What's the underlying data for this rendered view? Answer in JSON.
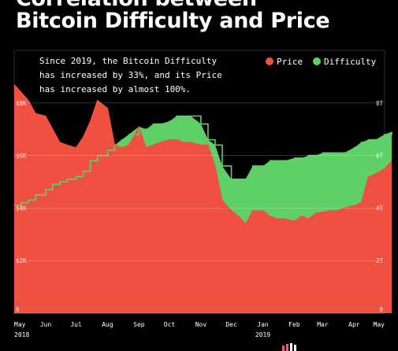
{
  "header": {
    "title_line1": "Correlation between",
    "title_line2": "Bitcoin Difficulty and Price"
  },
  "chart_data": {
    "type": "area",
    "annotation": [
      "Since 2019, the Bitcoin Difficulty",
      "has increased by 33%, and its Price",
      "has increased by almost 100%."
    ],
    "legend": [
      {
        "name": "Price",
        "color": "#f0503f"
      },
      {
        "name": "Difficulty",
        "color": "#5fcf68"
      }
    ],
    "legend_position": "top-right",
    "x_ticks": [
      "May",
      "Jun",
      "Jul",
      "Aug",
      "Sep",
      "Oct",
      "Nov",
      "Dec",
      "Jan",
      "Feb",
      "Mar",
      "Apr",
      "May"
    ],
    "x_subticks": [
      "2018",
      "2019"
    ],
    "y_left": {
      "ticks": [
        "0",
        "$2K",
        "$4K",
        "$6K",
        "$8K"
      ],
      "range": [
        0,
        10000
      ]
    },
    "y_right": {
      "ticks": [
        "0",
        "2T",
        "4T",
        "6T",
        "8T"
      ],
      "range": [
        0,
        10
      ]
    },
    "grid": true,
    "x": [
      "2018-05-01",
      "2018-05-08",
      "2018-05-15",
      "2018-05-22",
      "2018-06-01",
      "2018-06-08",
      "2018-06-15",
      "2018-06-22",
      "2018-07-01",
      "2018-07-08",
      "2018-07-15",
      "2018-07-22",
      "2018-08-01",
      "2018-08-08",
      "2018-08-15",
      "2018-08-22",
      "2018-09-01",
      "2018-09-08",
      "2018-09-15",
      "2018-09-22",
      "2018-10-01",
      "2018-10-08",
      "2018-10-15",
      "2018-10-22",
      "2018-11-01",
      "2018-11-08",
      "2018-11-15",
      "2018-11-22",
      "2018-12-01",
      "2018-12-08",
      "2018-12-15",
      "2018-12-22",
      "2019-01-01",
      "2019-01-08",
      "2019-01-15",
      "2019-01-22",
      "2019-02-01",
      "2019-02-08",
      "2019-02-15",
      "2019-02-22",
      "2019-03-01",
      "2019-03-08",
      "2019-03-15",
      "2019-03-22",
      "2019-04-01",
      "2019-04-08",
      "2019-04-15",
      "2019-04-22",
      "2019-05-01",
      "2019-05-08"
    ],
    "series": [
      {
        "name": "Price",
        "unit": "USD",
        "values": [
          8700,
          8400,
          8100,
          7600,
          7500,
          7000,
          6500,
          6400,
          6300,
          6700,
          7300,
          8100,
          7800,
          6400,
          6300,
          6400,
          7100,
          6300,
          6400,
          6500,
          6600,
          6600,
          6500,
          6500,
          6400,
          6400,
          5600,
          4300,
          3900,
          3700,
          3400,
          3900,
          3900,
          3700,
          3600,
          3600,
          3500,
          3700,
          3600,
          3800,
          3850,
          3900,
          3900,
          4000,
          4100,
          4200,
          5200,
          5300,
          5500,
          5800
        ]
      },
      {
        "name": "Difficulty",
        "unit": "T",
        "values": [
          4.1,
          4.2,
          4.3,
          4.5,
          4.7,
          4.9,
          5.0,
          5.1,
          5.2,
          5.4,
          5.8,
          6.0,
          6.2,
          6.4,
          6.6,
          6.8,
          7.0,
          7.0,
          7.2,
          7.2,
          7.3,
          7.5,
          7.5,
          7.5,
          7.2,
          6.6,
          6.4,
          5.6,
          5.1,
          5.1,
          5.1,
          5.6,
          5.6,
          5.8,
          5.8,
          5.8,
          5.9,
          5.9,
          6.0,
          6.0,
          6.1,
          6.1,
          6.1,
          6.1,
          6.3,
          6.5,
          6.6,
          6.6,
          6.8,
          6.9
        ]
      }
    ]
  },
  "colors": {
    "price": "#f0503f",
    "difficulty": "#5fcf68",
    "background": "#000000"
  },
  "brand": {
    "logo_icon": "brand-logo-icon"
  }
}
